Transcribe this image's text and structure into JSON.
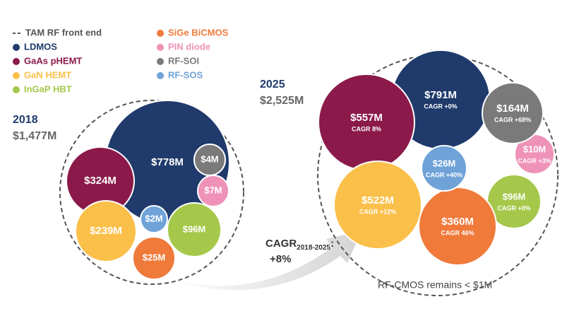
{
  "chart_data": {
    "type": "packed-bubble",
    "legend_title": "TAM RF front end",
    "series": [
      {
        "name": "LDMOS",
        "color": "#1f3a6b"
      },
      {
        "name": "GaAs pHEMT",
        "color": "#8b1a4a"
      },
      {
        "name": "GaN HEMT",
        "color": "#fbc04a"
      },
      {
        "name": "InGaP HBT",
        "color": "#a5c84a"
      },
      {
        "name": "SiGe BiCMOS",
        "color": "#ef7a3a"
      },
      {
        "name": "PIN diode",
        "color": "#ef92b8"
      },
      {
        "name": "RF-SOI",
        "color": "#7a7a7a"
      },
      {
        "name": "RF-SOS",
        "color": "#6fa3d8"
      }
    ],
    "groups": [
      {
        "year": "2018",
        "total": 1477,
        "total_label": "$1,477M",
        "values": [
          778,
          324,
          239,
          96,
          25,
          7,
          4,
          2
        ],
        "value_labels": [
          "$778M",
          "$324M",
          "$239M",
          "$96M",
          "$25M",
          "$7M",
          "$4M",
          "$2M"
        ]
      },
      {
        "year": "2025",
        "total": 2525,
        "total_label": "$2,525M",
        "values": [
          791,
          557,
          522,
          96,
          360,
          10,
          164,
          26
        ],
        "value_labels": [
          "$791M",
          "$557M",
          "$522M",
          "$96M",
          "$360M",
          "$10M",
          "$164M",
          "$26M"
        ],
        "cagr_labels": [
          "CAGR +0%",
          "CAGR 8%",
          "CAGR +12%",
          "CAGR +0%",
          "CAGR 46%",
          "CAGR +3%",
          "CAGR +68%",
          "CAGR +40%"
        ]
      }
    ],
    "annotation": {
      "text": "CAGR",
      "subscript": "2018-2025",
      "suffix": ":",
      "value": "+8%"
    },
    "note": "RF-CMOS remains < $1M"
  }
}
